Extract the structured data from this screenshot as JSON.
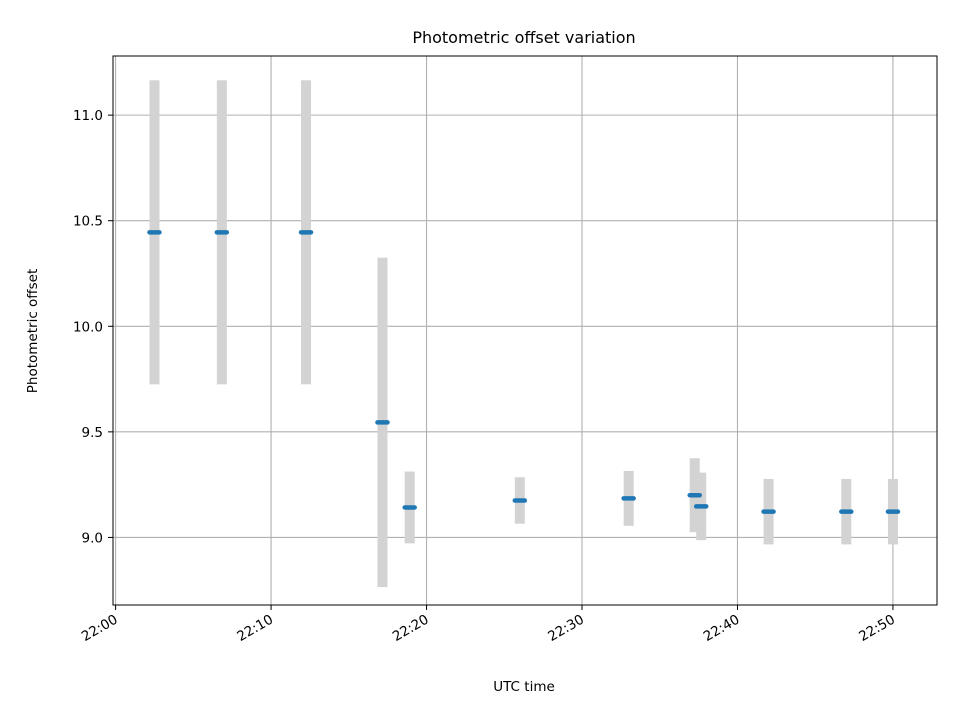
{
  "chart_data": {
    "type": "scatter",
    "title": "Photometric offset variation",
    "xlabel": "UTC time",
    "ylabel": "Photometric offset",
    "x_ticks": [
      "22:00",
      "22:10",
      "22:20",
      "22:30",
      "22:40",
      "22:50"
    ],
    "y_ticks": [
      "9.0",
      "9.5",
      "10.0",
      "10.5",
      "11.0"
    ],
    "xlim": [
      "21:59:50",
      "22:52:50"
    ],
    "ylim": [
      8.68,
      11.28
    ],
    "grid": true,
    "legend": "none",
    "colors": {
      "point": "#1f77b4",
      "errorbar": "#d3d3d3",
      "grid": "#b0b0b0"
    },
    "points": [
      {
        "x": "22:02:30",
        "y": 10.445,
        "err": 0.72
      },
      {
        "x": "22:06:50",
        "y": 10.445,
        "err": 0.72
      },
      {
        "x": "22:12:15",
        "y": 10.445,
        "err": 0.72
      },
      {
        "x": "22:17:10",
        "y": 9.545,
        "err": 0.78
      },
      {
        "x": "22:18:55",
        "y": 9.142,
        "err": 0.17
      },
      {
        "x": "22:26:00",
        "y": 9.175,
        "err": 0.11
      },
      {
        "x": "22:33:00",
        "y": 9.185,
        "err": 0.13
      },
      {
        "x": "22:37:15",
        "y": 9.2,
        "err": 0.175
      },
      {
        "x": "22:37:40",
        "y": 9.147,
        "err": 0.16
      },
      {
        "x": "22:42:00",
        "y": 9.122,
        "err": 0.155
      },
      {
        "x": "22:47:00",
        "y": 9.122,
        "err": 0.155
      },
      {
        "x": "22:50:00",
        "y": 9.122,
        "err": 0.155
      }
    ]
  }
}
